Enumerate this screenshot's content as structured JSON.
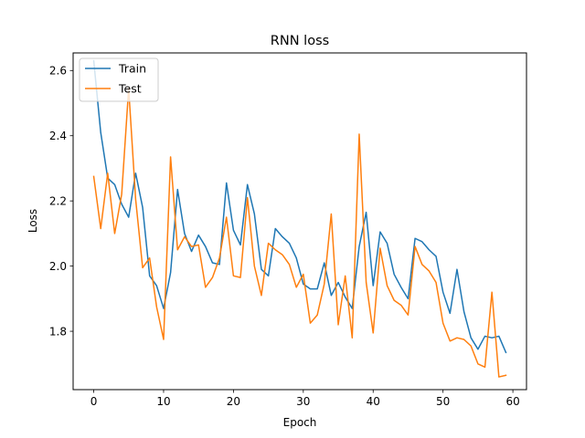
{
  "chart_data": {
    "type": "line",
    "title": "RNN loss",
    "xlabel": "Epoch",
    "ylabel": "Loss",
    "xlim": [
      -2.95,
      61.95
    ],
    "ylim": [
      1.621,
      2.654
    ],
    "xticks": [
      0,
      10,
      20,
      30,
      40,
      50,
      60
    ],
    "yticks": [
      1.8,
      2.0,
      2.2,
      2.4,
      2.6
    ],
    "ytick_labels": [
      "1.8",
      "2.0",
      "2.2",
      "2.4",
      "2.6"
    ],
    "grid": false,
    "legend_position": "top-left",
    "x": [
      0,
      1,
      2,
      3,
      4,
      5,
      6,
      7,
      8,
      9,
      10,
      11,
      12,
      13,
      14,
      15,
      16,
      17,
      18,
      19,
      20,
      21,
      22,
      23,
      24,
      25,
      26,
      27,
      28,
      29,
      30,
      31,
      32,
      33,
      34,
      35,
      36,
      37,
      38,
      39,
      40,
      41,
      42,
      43,
      44,
      45,
      46,
      47,
      48,
      49,
      50,
      51,
      52,
      53,
      54,
      55,
      56,
      57,
      58,
      59
    ],
    "series": [
      {
        "name": "Train",
        "color": "#1f77b4",
        "values": [
          2.63,
          2.41,
          2.27,
          2.25,
          2.19,
          2.15,
          2.285,
          2.18,
          1.97,
          1.94,
          1.87,
          1.98,
          2.235,
          2.1,
          2.045,
          2.095,
          2.06,
          2.01,
          2.005,
          2.255,
          2.11,
          2.065,
          2.25,
          2.16,
          1.99,
          1.97,
          2.115,
          2.09,
          2.07,
          2.025,
          1.945,
          1.93,
          1.93,
          2.01,
          1.91,
          1.95,
          1.905,
          1.87,
          2.06,
          2.165,
          1.94,
          2.105,
          2.07,
          1.975,
          1.935,
          1.9,
          2.085,
          2.075,
          2.05,
          2.03,
          1.92,
          1.855,
          1.99,
          1.86,
          1.78,
          1.745,
          1.785,
          1.78,
          1.785,
          1.735
        ]
      },
      {
        "name": "Test",
        "color": "#ff7f0e",
        "values": [
          2.275,
          2.115,
          2.285,
          2.1,
          2.22,
          2.545,
          2.205,
          1.995,
          2.025,
          1.875,
          1.775,
          2.335,
          2.05,
          2.09,
          2.06,
          2.065,
          1.935,
          1.965,
          2.025,
          2.15,
          1.97,
          1.965,
          2.21,
          2.0,
          1.91,
          2.07,
          2.05,
          2.035,
          2.005,
          1.935,
          1.975,
          1.825,
          1.85,
          1.945,
          2.16,
          1.82,
          1.97,
          1.78,
          2.405,
          1.95,
          1.795,
          2.055,
          1.94,
          1.895,
          1.88,
          1.85,
          2.06,
          2.005,
          1.985,
          1.95,
          1.825,
          1.77,
          1.78,
          1.775,
          1.755,
          1.7,
          1.69,
          1.92,
          1.66,
          1.665
        ]
      }
    ]
  }
}
